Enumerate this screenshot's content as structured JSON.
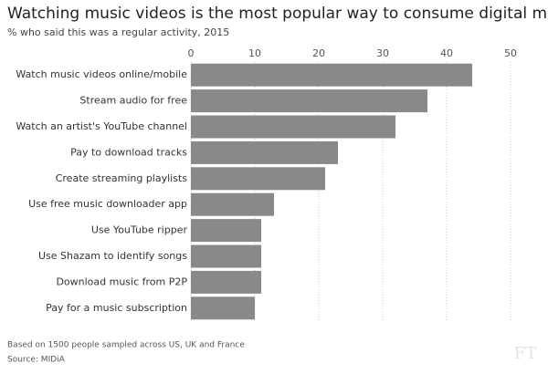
{
  "chart_data": {
    "type": "bar",
    "orientation": "horizontal",
    "title": "Watching music videos is the most popular way to consume digital music",
    "subtitle": "% who said this was a regular activity, 2015",
    "categories": [
      "Watch music videos online/mobile",
      "Stream audio for free",
      "Watch an artist's YouTube channel",
      "Pay to download tracks",
      "Create streaming playlists",
      "Use free music downloader app",
      "Use YouTube ripper",
      "Use Shazam to identify songs",
      "Download music from P2P",
      "Pay for a music subscription"
    ],
    "values": [
      44,
      37,
      32,
      23,
      21,
      13,
      11,
      11,
      11,
      10
    ],
    "color": "#898989",
    "xlim": [
      0,
      50
    ],
    "xticks": [
      0,
      10,
      20,
      30,
      40,
      50
    ],
    "grid": true,
    "note": "Based on 1500 people sampled across US, UK and France",
    "source": "Source: MIDiA",
    "watermark": "FT"
  }
}
